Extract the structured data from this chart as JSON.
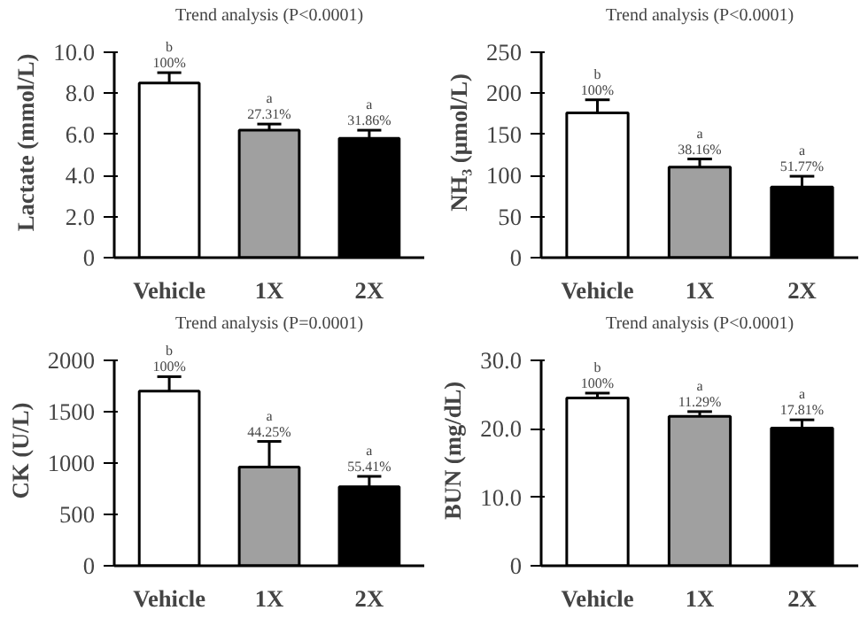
{
  "chart_data": [
    {
      "type": "bar",
      "title": "Trend analysis (P<0.0001)",
      "ylabel": "Lactate (mmol/L)",
      "categories": [
        "Vehicle",
        "1X",
        "2X"
      ],
      "values": [
        8.5,
        6.2,
        5.8
      ],
      "errors": [
        0.5,
        0.3,
        0.4
      ],
      "colors": [
        "#ffffff",
        "#a0a0a0",
        "#000000"
      ],
      "ylim": [
        0,
        10
      ],
      "yticks": [
        0,
        {
          "value": 2,
          "label": "2.0"
        },
        {
          "value": 4,
          "label": "4.0"
        },
        {
          "value": 6,
          "label": "6.0"
        },
        {
          "value": 8,
          "label": "8.0"
        },
        {
          "value": 10,
          "label": "10.0"
        }
      ],
      "grid": false,
      "annotations": [
        {
          "text": "b\n100%",
          "x": "Vehicle",
          "y": 9.0
        },
        {
          "text": "a\n27.31%",
          "x": "1X",
          "y": 6.5
        },
        {
          "text": "a\n31.86%",
          "x": "2X",
          "y": 6.2
        }
      ]
    },
    {
      "type": "bar",
      "title": "Trend analysis (P<0.0001)",
      "ylabel": "NH₃ (μmol/L)",
      "categories": [
        "Vehicle",
        "1X",
        "2X"
      ],
      "values": [
        176,
        110,
        86
      ],
      "errors": [
        16,
        10,
        13
      ],
      "colors": [
        "#ffffff",
        "#a0a0a0",
        "#000000"
      ],
      "ylim": [
        0,
        250
      ],
      "yticks": [
        0,
        50,
        100,
        150,
        200,
        250
      ],
      "grid": false,
      "annotations": [
        {
          "text": "b\n100%",
          "x": "Vehicle",
          "y": 192
        },
        {
          "text": "a\n38.16%",
          "x": "1X",
          "y": 120
        },
        {
          "text": "a\n51.77%",
          "x": "2X",
          "y": 99
        }
      ]
    },
    {
      "type": "bar",
      "title": "Trend analysis (P=0.0001)",
      "ylabel": "CK (U/L)",
      "categories": [
        "Vehicle",
        "1X",
        "2X"
      ],
      "values": [
        1700,
        960,
        770
      ],
      "errors": [
        140,
        250,
        100
      ],
      "colors": [
        "#ffffff",
        "#a0a0a0",
        "#000000"
      ],
      "ylim": [
        0,
        2000
      ],
      "yticks": [
        0,
        500,
        1000,
        1500,
        2000
      ],
      "grid": false,
      "annotations": [
        {
          "text": "b\n100%",
          "x": "Vehicle",
          "y": 1840
        },
        {
          "text": "a\n44.25%",
          "x": "1X",
          "y": 1210
        },
        {
          "text": "a\n55.41%",
          "x": "2X",
          "y": 870
        }
      ]
    },
    {
      "type": "bar",
      "title": "Trend analysis (P<0.0001)",
      "ylabel": "BUN (mg/dL)",
      "categories": [
        "Vehicle",
        "1X",
        "2X"
      ],
      "values": [
        24.5,
        21.8,
        20.1
      ],
      "errors": [
        0.7,
        0.7,
        1.2
      ],
      "colors": [
        "#ffffff",
        "#a0a0a0",
        "#000000"
      ],
      "ylim": [
        0,
        30
      ],
      "yticks": [
        0,
        {
          "value": 10,
          "label": "10.0"
        },
        {
          "value": 20,
          "label": "20.0"
        },
        {
          "value": 30,
          "label": "30.0"
        }
      ],
      "grid": false,
      "annotations": [
        {
          "text": "b\n100%",
          "x": "Vehicle",
          "y": 25.2
        },
        {
          "text": "a\n11.29%",
          "x": "1X",
          "y": 22.5
        },
        {
          "text": "a\n17.81%",
          "x": "2X",
          "y": 21.3
        }
      ]
    }
  ]
}
